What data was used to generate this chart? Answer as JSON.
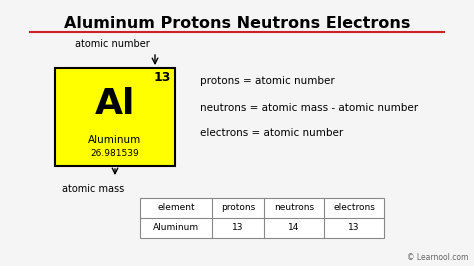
{
  "title": "Aluminum Protons Neutrons Electrons",
  "background_color": "#f5f5f5",
  "title_fontsize": 11.5,
  "title_fontweight": "bold",
  "title_color": "#000000",
  "underline_color": "#cc2222",
  "element_symbol": "Al",
  "element_name": "Aluminum",
  "element_atomic_number": "13",
  "element_atomic_mass": "26.981539",
  "atomic_number_label": "atomic number",
  "atomic_mass_label": "atomic mass",
  "formula_lines": [
    "protons = atomic number",
    "neutrons = atomic mass - atomic number",
    "electrons = atomic number"
  ],
  "table_headers": [
    "element",
    "protons",
    "neutrons",
    "electrons"
  ],
  "table_row": [
    "Aluminum",
    "13",
    "14",
    "13"
  ],
  "learnool_text": "© Learnool.com",
  "box_facecolor": "#ffff00",
  "box_edgecolor": "#000000"
}
